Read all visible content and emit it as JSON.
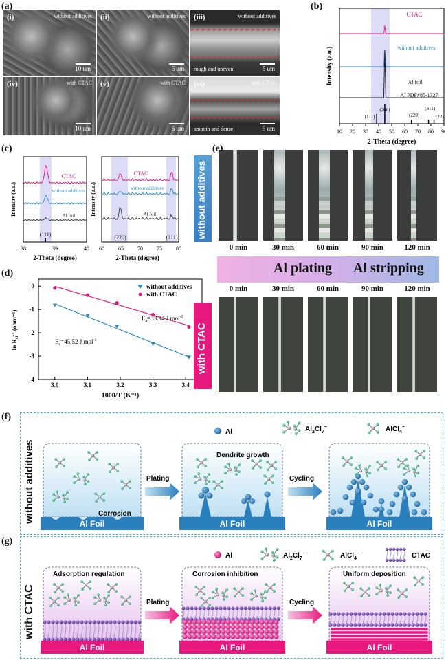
{
  "panels": {
    "a": "(a)",
    "b": "(b)",
    "c": "(c)",
    "d": "(d)",
    "e": "(e)",
    "f": "(f)",
    "g": "(g)"
  },
  "sem_images": [
    {
      "num": "(i)",
      "tag": "without additives",
      "scale": "10 um",
      "caption": ""
    },
    {
      "num": "(ii)",
      "tag": "without additives",
      "scale": "5 um",
      "caption": ""
    },
    {
      "num": "(iii)",
      "tag": "without additives",
      "scale": "5 um",
      "caption": "rough and uneven"
    },
    {
      "num": "(iv)",
      "tag": "with CTAC",
      "scale": "10 um",
      "caption": ""
    },
    {
      "num": "(v)",
      "tag": "with CTAC",
      "scale": "5 um",
      "caption": ""
    },
    {
      "num": "(vi)",
      "tag": "with CTAC",
      "scale": "5 um",
      "caption": "smooth and dense"
    }
  ],
  "chart_data": [
    {
      "type": "line",
      "panel": "b",
      "xlabel": "2-Theta (degree)",
      "ylabel": "Intensity (a.u.)",
      "xlim": [
        10,
        90
      ],
      "x_ticks": [
        "10",
        "20",
        "30",
        "40",
        "50",
        "60",
        "70",
        "80",
        "90"
      ],
      "series": [
        {
          "name": "CTAC",
          "color": "#e8197e"
        },
        {
          "name": "without additives",
          "color": "#2b8ccc"
        },
        {
          "name": "Al foil",
          "color": "#222222"
        }
      ],
      "reference": {
        "label": "Al  PDF#85-1327",
        "peaks": [
          {
            "x": 38.5,
            "label": "(111)"
          },
          {
            "x": 44.7,
            "label": "(200)"
          },
          {
            "x": 65.1,
            "label": "(220)"
          },
          {
            "x": 78.2,
            "label": "(311)"
          },
          {
            "x": 82.4,
            "label": "(222)"
          }
        ]
      }
    },
    {
      "type": "line",
      "panel": "c-left",
      "xlabel": "2-Theta (degree)",
      "ylabel": "Intensity (a.u.)",
      "xlim": [
        38,
        40
      ],
      "x_ticks": [
        "38",
        "39",
        "40"
      ],
      "series": [
        {
          "name": "CTAC",
          "color": "#e8197e"
        },
        {
          "name": "without additives",
          "color": "#2b8ccc"
        },
        {
          "name": "Al foil",
          "color": "#444444"
        }
      ],
      "peak_label": "(111)"
    },
    {
      "type": "line",
      "panel": "c-right",
      "xlabel": "2-Theta (degree)",
      "ylabel": "Intensity (a.u.)",
      "xlim": [
        60,
        80
      ],
      "x_ticks": [
        "60",
        "65",
        "70",
        "75",
        "80"
      ],
      "series": [
        {
          "name": "CTAC",
          "color": "#e8197e"
        },
        {
          "name": "without additives",
          "color": "#2b8ccc"
        },
        {
          "name": "Al foil",
          "color": "#444444"
        }
      ],
      "peak_labels": [
        "(220)",
        "(311)"
      ]
    },
    {
      "type": "scatter",
      "panel": "d",
      "xlabel": "1000/T (K⁻¹)",
      "ylabel": "ln R",
      "ylabel_sub": "ct",
      "ylabel_sup": "-1",
      "ylabel_rest": " (ohm⁻¹)",
      "xlim": [
        2.95,
        3.45
      ],
      "ylim": [
        -4,
        0.3
      ],
      "x_ticks": [
        "3.0",
        "3.1",
        "3.2",
        "3.3",
        "3.4"
      ],
      "y_ticks": [
        "0",
        "-1",
        "-2",
        "-3",
        "-4"
      ],
      "series": [
        {
          "name": "without additives",
          "color": "#2b8ccc",
          "marker": "triangle-down",
          "x": [
            3.0,
            3.1,
            3.19,
            3.3,
            3.41
          ],
          "y": [
            -0.82,
            -1.28,
            -1.72,
            -2.48,
            -3.05
          ]
        },
        {
          "name": "with CTAC",
          "color": "#e8197e",
          "marker": "circle",
          "x": [
            3.0,
            3.1,
            3.19,
            3.3,
            3.41
          ],
          "y": [
            -0.08,
            -0.38,
            -0.72,
            -1.22,
            -1.75
          ]
        }
      ],
      "annotations": [
        {
          "text": "E",
          "sub": "a",
          "rest": "=33.94 J mol",
          "sup": "-1"
        },
        {
          "text": "E",
          "sub": "a",
          "rest": "=45.52 J mol",
          "sup": "-1"
        }
      ]
    }
  ],
  "panel_e": {
    "row1_label": "without additives",
    "row2_label": "with CTAC",
    "times": [
      "0 min",
      "30 min",
      "60 min",
      "90 min",
      "120 min"
    ],
    "plating": "Al plating",
    "stripping": "Al stripping"
  },
  "panel_f": {
    "side": "without additives",
    "legend": {
      "al": "Al",
      "al2cl7": "Al",
      "al2cl7_sub": "2",
      "al2cl7_mid": "Cl",
      "al2cl7_sub2": "7",
      "al2cl7_sup": "−",
      "alcl4": "AlCl",
      "alcl4_sub": "4",
      "alcl4_sup": "−"
    },
    "corrosion": "Corrosion",
    "dendrite": "Dendrite growth",
    "plating": "Plating",
    "cycling": "Cycling",
    "foil": "Al Foil"
  },
  "panel_g": {
    "side": "with CTAC",
    "legend": {
      "al": "Al",
      "al2cl7": "Al",
      "al2cl7_sub": "2",
      "al2cl7_mid": "Cl",
      "al2cl7_sub2": "7",
      "al2cl7_sup": "−",
      "alcl4": "AlCl",
      "alcl4_sub": "4",
      "alcl4_sup": "−",
      "ctac": "CTAC"
    },
    "adsorption": "Adsorption regulation",
    "inhibition": "Corrosion inhibition",
    "uniform": "Uniform deposition",
    "plating": "Plating",
    "cycling": "Cycling",
    "foil": "Al Foil"
  },
  "colors": {
    "ctac": "#e8197e",
    "without": "#2b8ccc",
    "al_foil": "#222222",
    "dashed_box": "#3db7e4",
    "foil_blue": "#2a7fbd",
    "foil_pink": "#e8197e"
  }
}
